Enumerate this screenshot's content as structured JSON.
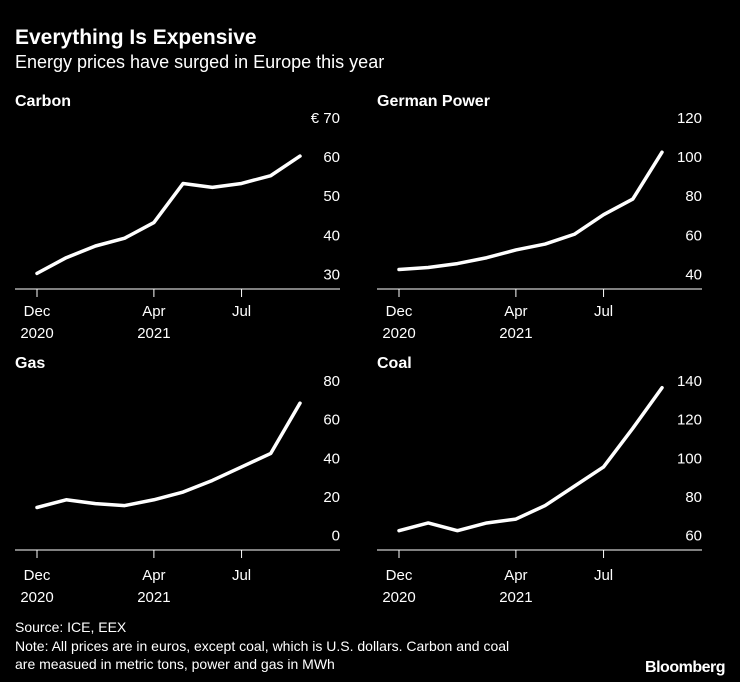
{
  "title": "Everything Is Expensive",
  "subtitle": "Energy prices have surged in Europe this year",
  "source": "Source: ICE, EEX",
  "note": [
    "Note: All prices are in euros, except coal, which is U.S. dollars. Carbon and coal",
    "are measued in metric tons, power and gas in MWh"
  ],
  "logo": "Bloomberg",
  "chart_data": [
    {
      "type": "line",
      "title": "Carbon",
      "color": "#ffffff",
      "x": [
        "2020-12",
        "2021-01",
        "2021-02",
        "2021-03",
        "2021-04",
        "2021-05",
        "2021-06",
        "2021-07",
        "2021-08",
        "2021-09"
      ],
      "values": [
        30,
        34,
        37,
        39,
        43,
        53,
        52,
        53,
        55,
        60
      ],
      "xlim": [
        "2020-12",
        "2021-09"
      ],
      "xticks": [
        {
          "value": "2020-12",
          "label": "Dec",
          "year": "2020"
        },
        {
          "value": "2021-04",
          "label": "Apr",
          "year": "2021"
        },
        {
          "value": "2021-07",
          "label": "Jul"
        }
      ],
      "ylim": [
        26,
        70
      ],
      "yticks": [
        30,
        40,
        50,
        60,
        {
          "value": 70,
          "label": "€ 70"
        }
      ]
    },
    {
      "type": "line",
      "title": "German Power",
      "color": "#ffffff",
      "x": [
        "2020-12",
        "2021-01",
        "2021-02",
        "2021-03",
        "2021-04",
        "2021-05",
        "2021-06",
        "2021-07",
        "2021-08",
        "2021-09"
      ],
      "values": [
        42,
        43,
        45,
        48,
        52,
        55,
        60,
        70,
        78,
        102
      ],
      "xlim": [
        "2020-12",
        "2021-09"
      ],
      "xticks": [
        {
          "value": "2020-12",
          "label": "Dec",
          "year": "2020"
        },
        {
          "value": "2021-04",
          "label": "Apr",
          "year": "2021"
        },
        {
          "value": "2021-07",
          "label": "Jul"
        }
      ],
      "ylim": [
        32,
        120
      ],
      "yticks": [
        40,
        60,
        80,
        100,
        120
      ]
    },
    {
      "type": "line",
      "title": "Gas",
      "color": "#ffffff",
      "x": [
        "2020-12",
        "2021-01",
        "2021-02",
        "2021-03",
        "2021-04",
        "2021-05",
        "2021-06",
        "2021-07",
        "2021-08",
        "2021-09"
      ],
      "values": [
        14,
        18,
        16,
        15,
        18,
        22,
        28,
        35,
        42,
        68
      ],
      "xlim": [
        "2020-12",
        "2021-09"
      ],
      "xticks": [
        {
          "value": "2020-12",
          "label": "Dec",
          "year": "2020"
        },
        {
          "value": "2021-04",
          "label": "Apr",
          "year": "2021"
        },
        {
          "value": "2021-07",
          "label": "Jul"
        }
      ],
      "ylim": [
        -8,
        80
      ],
      "yticks": [
        0,
        20,
        40,
        60,
        80
      ]
    },
    {
      "type": "line",
      "title": "Coal",
      "color": "#ffffff",
      "x": [
        "2020-12",
        "2021-01",
        "2021-02",
        "2021-03",
        "2021-04",
        "2021-05",
        "2021-06",
        "2021-07",
        "2021-08",
        "2021-09"
      ],
      "values": [
        62,
        66,
        62,
        66,
        68,
        75,
        85,
        95,
        115,
        136
      ],
      "xlim": [
        "2020-12",
        "2021-09"
      ],
      "xticks": [
        {
          "value": "2020-12",
          "label": "Dec",
          "year": "2020"
        },
        {
          "value": "2021-04",
          "label": "Apr",
          "year": "2021"
        },
        {
          "value": "2021-07",
          "label": "Jul"
        }
      ],
      "ylim": [
        52,
        140
      ],
      "yticks": [
        60,
        80,
        100,
        120,
        140
      ]
    }
  ]
}
